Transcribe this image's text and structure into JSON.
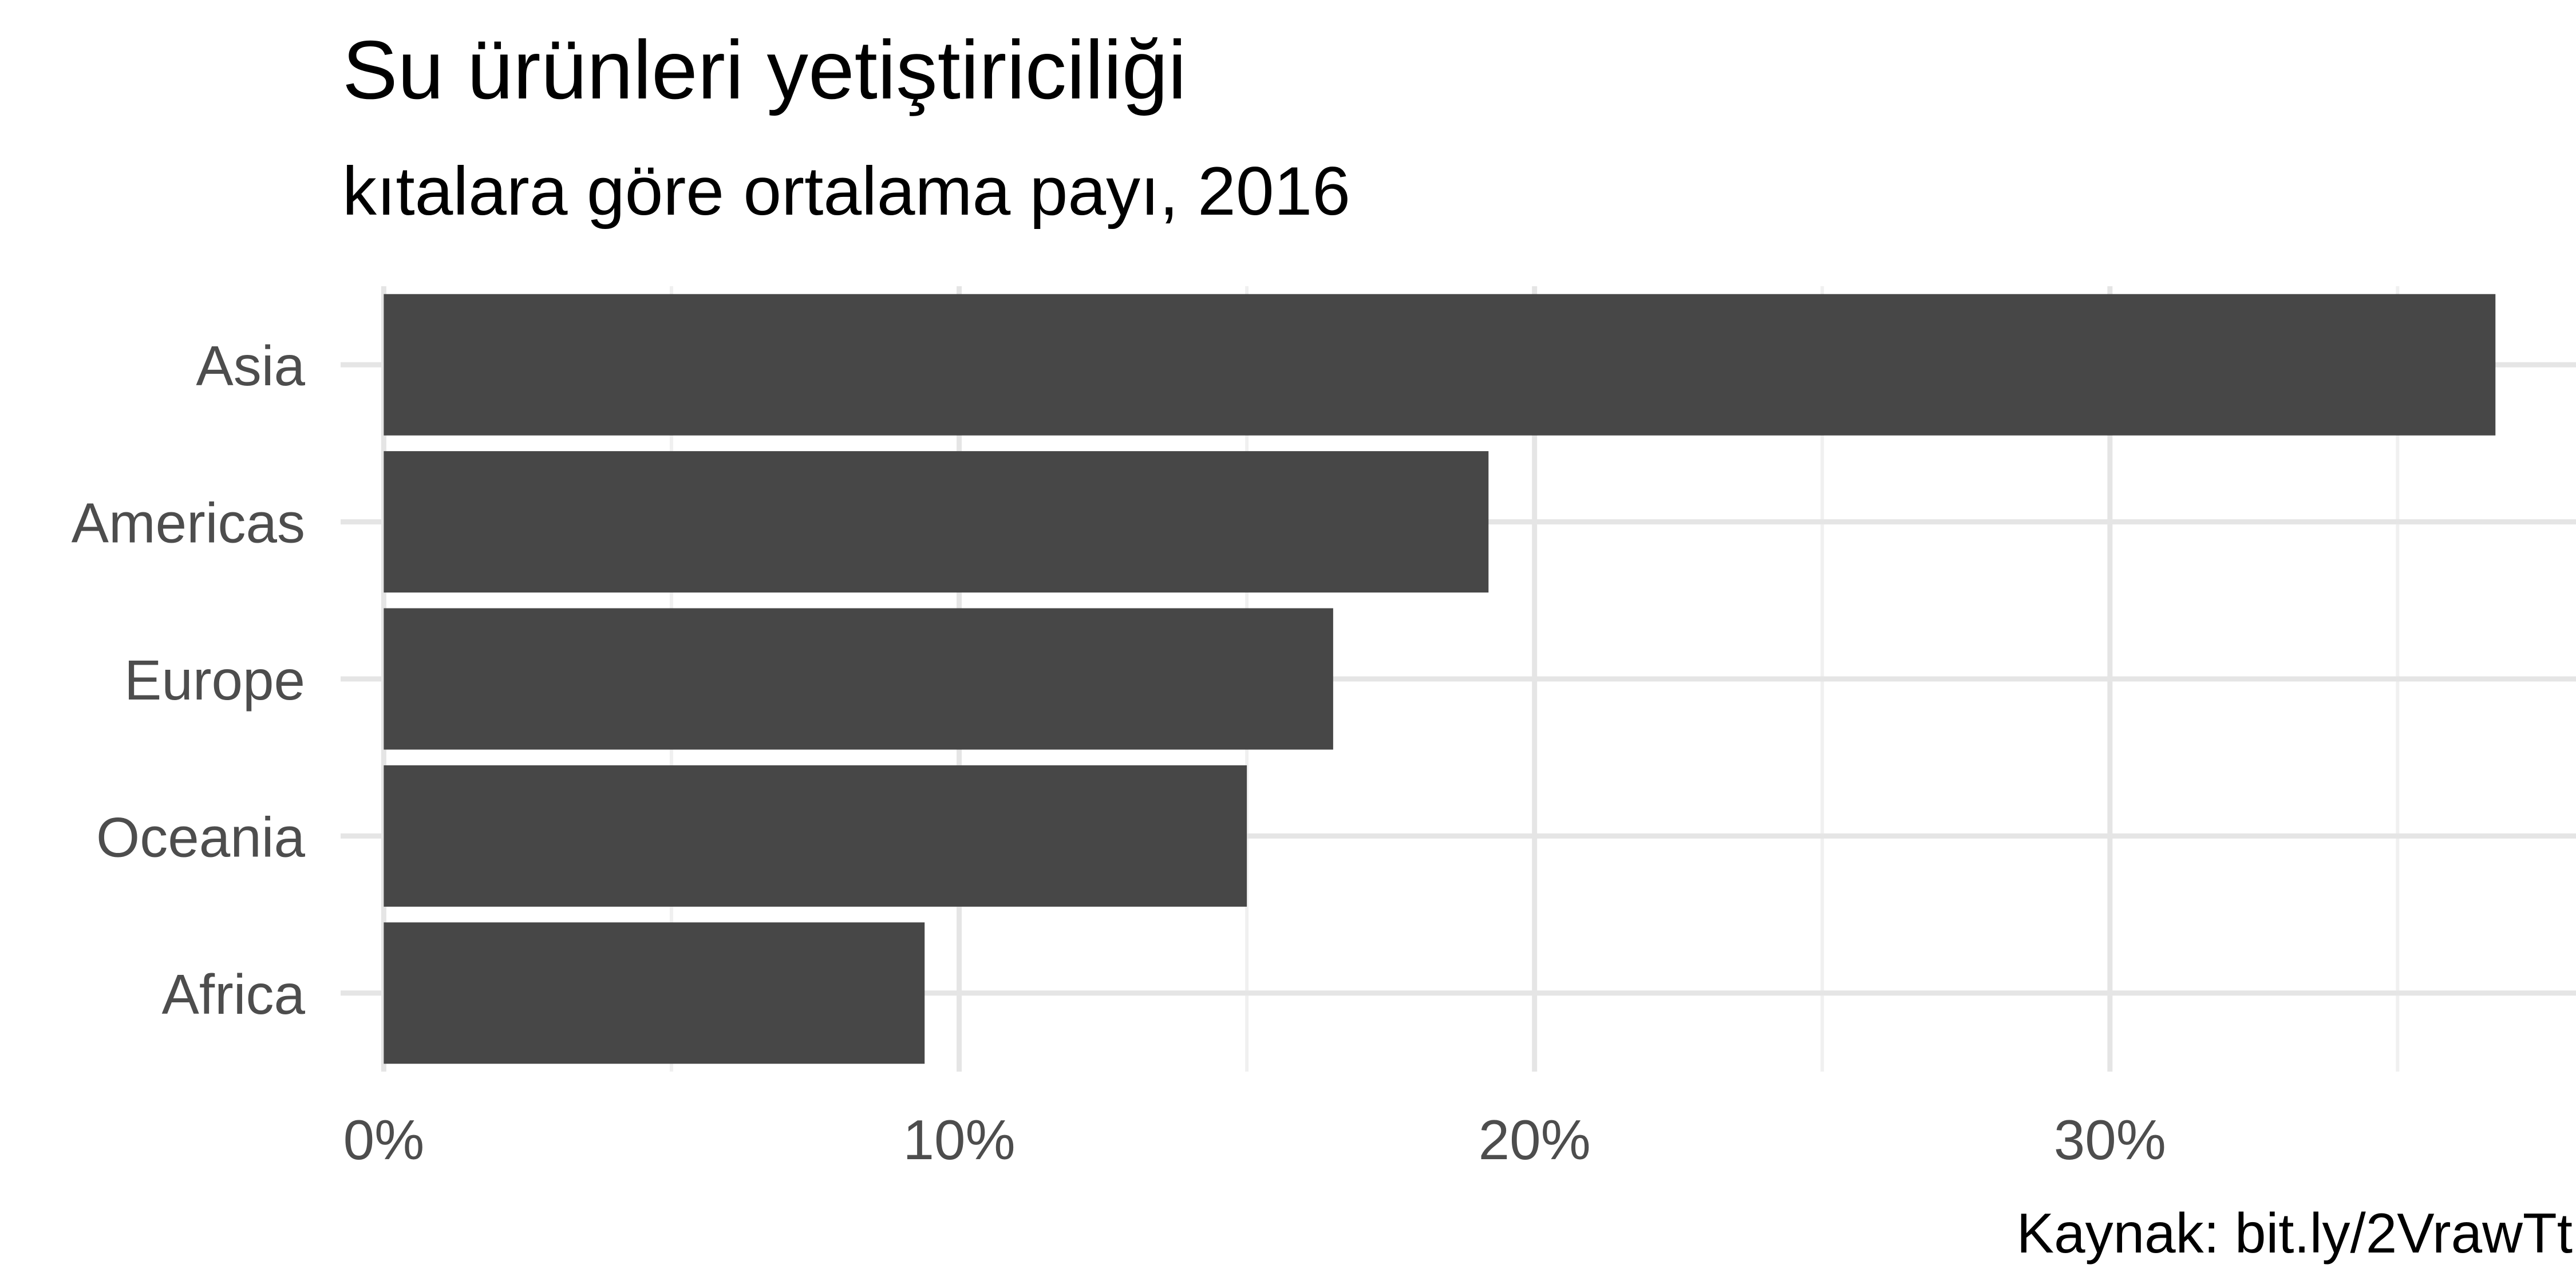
{
  "chart_data": {
    "type": "bar",
    "orientation": "horizontal",
    "title": "Su ürünleri yetiştiriciliği",
    "subtitle": "kıtalara göre ortalama payı, 2016",
    "caption": "Kaynak: bit.ly/2VrawTt",
    "xlabel": "",
    "ylabel": "",
    "categories": [
      "Asia",
      "Americas",
      "Europe",
      "Oceania",
      "Africa"
    ],
    "values": [
      36.7,
      19.2,
      16.5,
      15.0,
      9.4
    ],
    "value_unit": "%",
    "xlim": [
      -0.75,
      38.1
    ],
    "x_ticks": [
      0,
      10,
      20,
      30
    ],
    "x_tick_labels": [
      "0%",
      "10%",
      "20%",
      "30%"
    ],
    "x_minor_ticks": [
      5,
      15,
      25,
      35
    ],
    "grid": true,
    "legend": "none",
    "colors": {
      "bar": "#474747",
      "grid_major": "#e5e5e5",
      "grid_minor": "#f0f0f0",
      "tick_text": "#4d4d4d",
      "title_text": "#000000",
      "background": "#ffffff"
    }
  }
}
